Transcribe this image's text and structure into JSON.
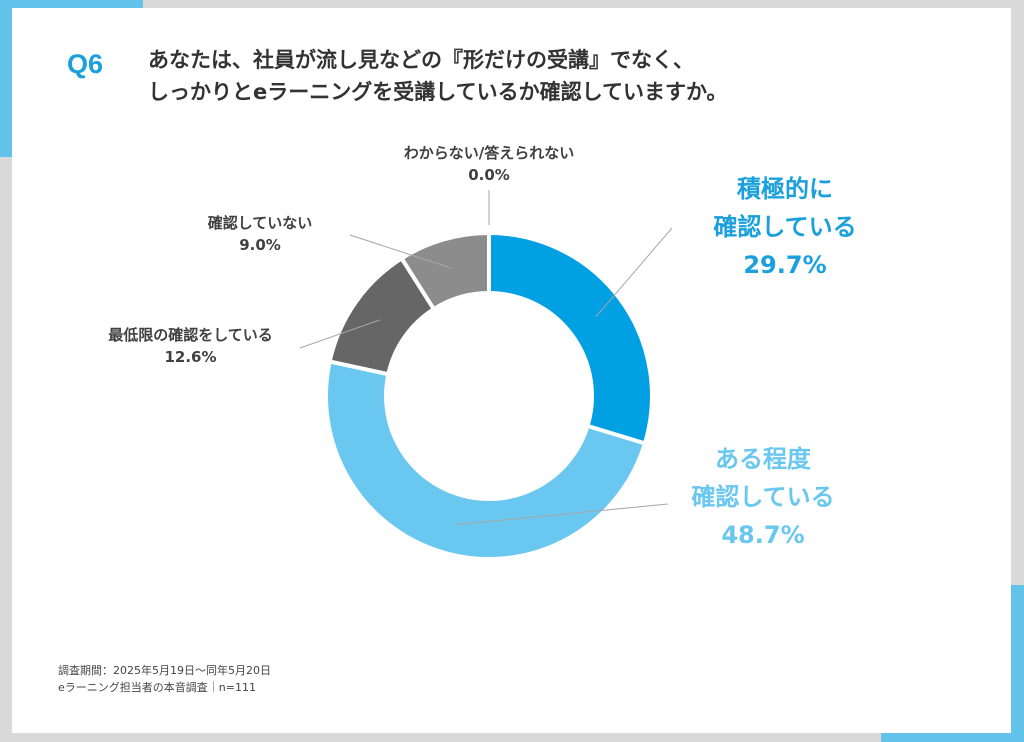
{
  "header": {
    "question_number": "Q6",
    "question_line1": "あなたは、社員が流し見などの『形だけの受講』でなく、",
    "question_line2": "しっかりとeラーニングを受講しているか確認していますか。"
  },
  "chart_data": {
    "type": "pie",
    "donut": true,
    "categories": [
      "積極的に確認している",
      "ある程度確認している",
      "最低限の確認をしている",
      "確認していない",
      "わからない/答えられない"
    ],
    "values": [
      29.7,
      48.7,
      12.6,
      9.0,
      0.0
    ],
    "colors": [
      "#00a0e3",
      "#6ac7f0",
      "#666666",
      "#8c8c8c",
      "#b3b3b3"
    ],
    "labels": [
      {
        "lines": [
          "積極的に",
          "確認している"
        ],
        "value": "29.7%"
      },
      {
        "lines": [
          "ある程度",
          "確認している"
        ],
        "value": "48.7%"
      },
      {
        "lines": [
          "最低限の確認をしている"
        ],
        "value": "12.6%"
      },
      {
        "lines": [
          "確認していない"
        ],
        "value": "9.0%"
      },
      {
        "lines": [
          "わからない/答えられない"
        ],
        "value": "0.0%"
      }
    ]
  },
  "footer": {
    "period": "調査期間：2025年5月19日～同年5月20日",
    "survey": "eラーニング担当者の本音調査｜n=111"
  }
}
